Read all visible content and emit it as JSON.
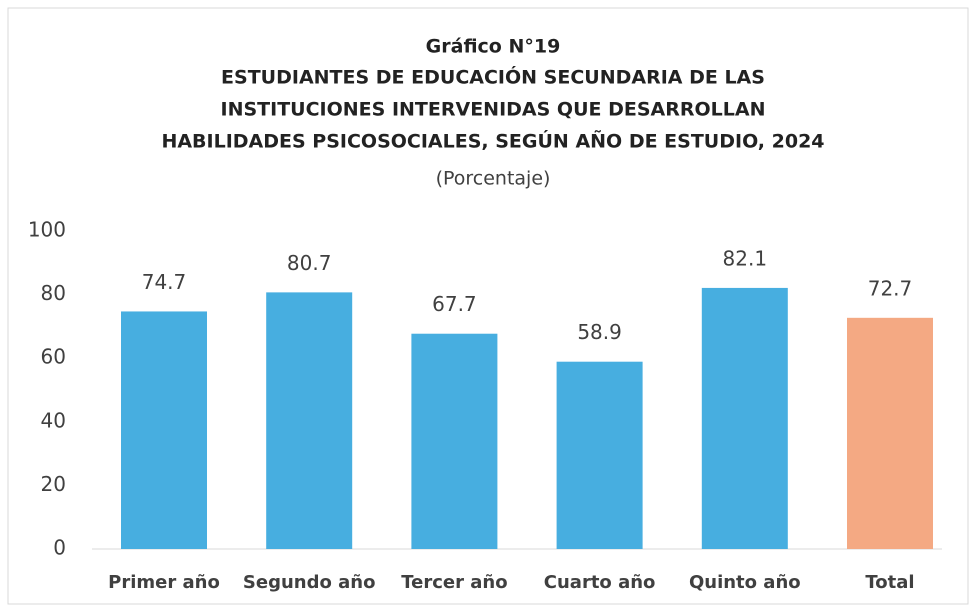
{
  "chart_data": {
    "type": "bar",
    "title": [
      "Gráfico N°19",
      "ESTUDIANTES DE EDUCACIÓN SECUNDARIA DE LAS",
      "INSTITUCIONES INTERVENIDAS QUE DESARROLLAN",
      "HABILIDADES PSICOSOCIALES, SEGÚN AÑO DE ESTUDIO, 2024"
    ],
    "subtitle": "(Porcentaje)",
    "categories": [
      "Primer año",
      "Segundo año",
      "Tercer año",
      "Cuarto año",
      "Quinto año",
      "Total"
    ],
    "values": [
      74.7,
      80.7,
      67.7,
      58.9,
      82.1,
      72.7
    ],
    "colors": [
      "#47aee0",
      "#47aee0",
      "#47aee0",
      "#47aee0",
      "#47aee0",
      "#f4a983"
    ],
    "ylim": [
      0,
      100
    ],
    "yticks": [
      0,
      20,
      40,
      60,
      80,
      100
    ],
    "grid": false
  }
}
